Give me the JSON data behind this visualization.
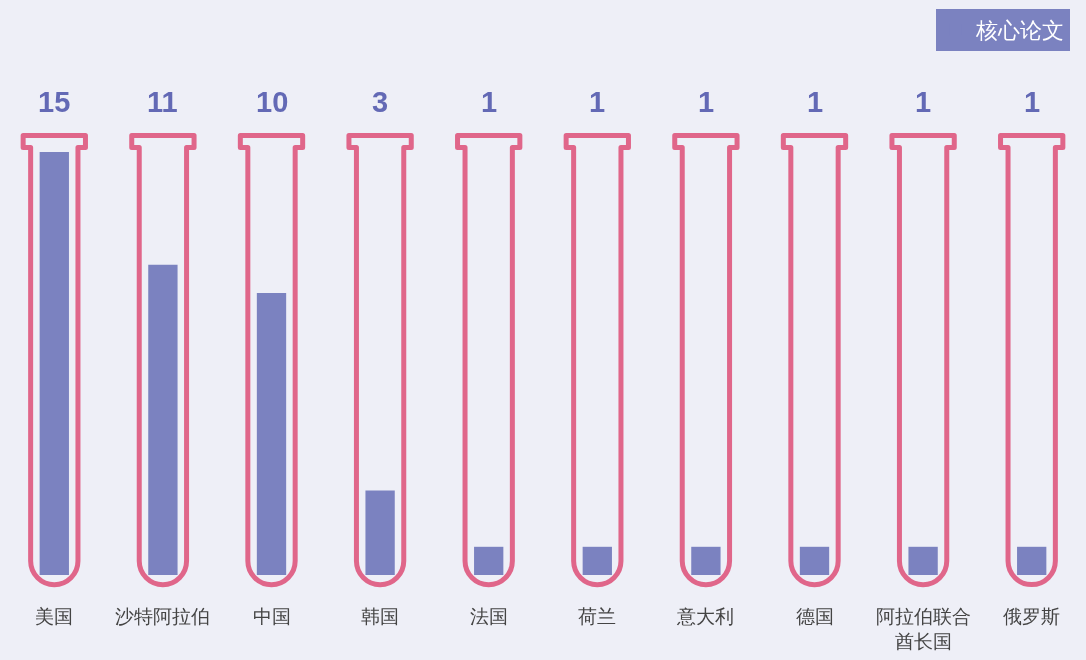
{
  "chart_data": {
    "type": "bar",
    "categories": [
      "美国",
      "沙特阿拉伯",
      "中国",
      "韩国",
      "法国",
      "荷兰",
      "意大利",
      "德国",
      "阿拉伯联合酋长国",
      "俄罗斯"
    ],
    "series": [
      {
        "name": "核心论文",
        "color": "#7b82c0",
        "values": [
          15,
          11,
          10,
          3,
          1,
          1,
          1,
          1,
          1,
          1
        ]
      }
    ],
    "ylim": [
      0,
      15
    ],
    "data_labels": true,
    "legend": "top right",
    "tick_labels": "x"
  }
}
